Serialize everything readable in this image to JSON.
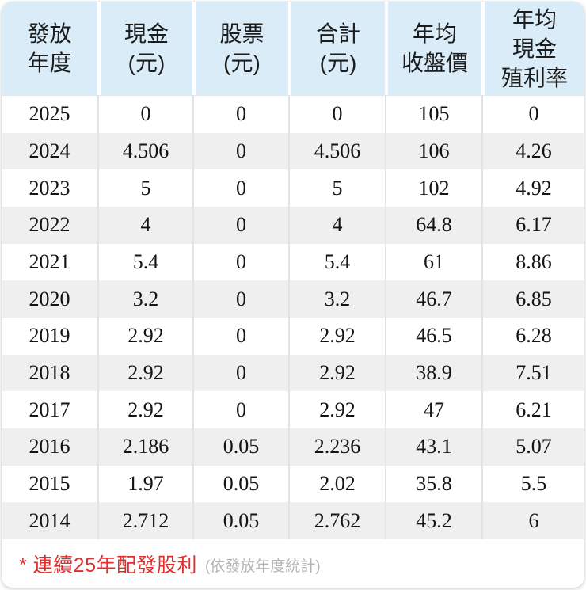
{
  "table": {
    "header": {
      "columns": [
        {
          "id": "year",
          "label": "發放\n年度"
        },
        {
          "id": "cash",
          "label": "現金\n(元)"
        },
        {
          "id": "stock",
          "label": "股票\n(元)"
        },
        {
          "id": "total",
          "label": "合計\n(元)"
        },
        {
          "id": "avg_close",
          "label": "年均\n收盤價"
        },
        {
          "id": "avg_yield",
          "label": "年均\n現金\n殖利率"
        }
      ]
    },
    "rows": [
      [
        "2025",
        "0",
        "0",
        "0",
        "105",
        "0"
      ],
      [
        "2024",
        "4.506",
        "0",
        "4.506",
        "106",
        "4.26"
      ],
      [
        "2023",
        "5",
        "0",
        "5",
        "102",
        "4.92"
      ],
      [
        "2022",
        "4",
        "0",
        "4",
        "64.8",
        "6.17"
      ],
      [
        "2021",
        "5.4",
        "0",
        "5.4",
        "61",
        "8.86"
      ],
      [
        "2020",
        "3.2",
        "0",
        "3.2",
        "46.7",
        "6.85"
      ],
      [
        "2019",
        "2.92",
        "0",
        "2.92",
        "46.5",
        "6.28"
      ],
      [
        "2018",
        "2.92",
        "0",
        "2.92",
        "38.9",
        "7.51"
      ],
      [
        "2017",
        "2.92",
        "0",
        "2.92",
        "47",
        "6.21"
      ],
      [
        "2016",
        "2.186",
        "0.05",
        "2.236",
        "43.1",
        "5.07"
      ],
      [
        "2015",
        "1.97",
        "0.05",
        "2.02",
        "35.8",
        "5.5"
      ],
      [
        "2014",
        "2.712",
        "0.05",
        "2.762",
        "45.2",
        "6"
      ]
    ]
  },
  "footer": {
    "note_red": "* 連續25年配發股利",
    "note_gray": "(依發放年度統計)"
  },
  "colors": {
    "header_bg": "#d9ecf8",
    "row_alt_bg": "#efefef",
    "body_separator": "#e3e3e3",
    "note_red": "#e22d2d",
    "note_gray": "#b5b5b5"
  },
  "chart_data": {
    "type": "table",
    "title": "股利發放年度表 (dividend by distribution year)",
    "columns": [
      "發放年度",
      "現金(元)",
      "股票(元)",
      "合計(元)",
      "年均收盤價",
      "年均現金殖利率"
    ],
    "rows": [
      [
        "2025",
        0,
        0,
        0,
        105,
        0
      ],
      [
        "2024",
        4.506,
        0,
        4.506,
        106,
        4.26
      ],
      [
        "2023",
        5,
        0,
        5,
        102,
        4.92
      ],
      [
        "2022",
        4,
        0,
        4,
        64.8,
        6.17
      ],
      [
        "2021",
        5.4,
        0,
        5.4,
        61,
        8.86
      ],
      [
        "2020",
        3.2,
        0,
        3.2,
        46.7,
        6.85
      ],
      [
        "2019",
        2.92,
        0,
        2.92,
        46.5,
        6.28
      ],
      [
        "2018",
        2.92,
        0,
        2.92,
        38.9,
        7.51
      ],
      [
        "2017",
        2.92,
        0,
        2.92,
        47,
        6.21
      ],
      [
        "2016",
        2.186,
        0.05,
        2.236,
        43.1,
        5.07
      ],
      [
        "2015",
        1.97,
        0.05,
        2.02,
        35.8,
        5.5
      ],
      [
        "2014",
        2.712,
        0.05,
        2.762,
        45.2,
        6
      ]
    ],
    "annotations": [
      "* 連續25年配發股利 (依發放年度統計)"
    ]
  }
}
